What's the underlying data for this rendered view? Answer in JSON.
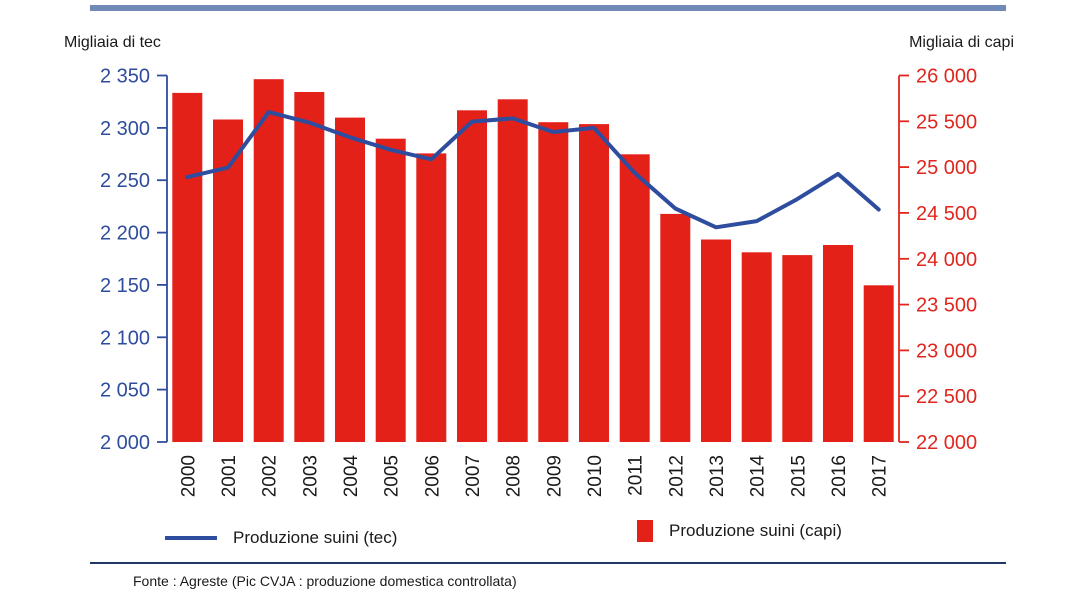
{
  "window": {
    "top_bar_color": "#7189b7",
    "separator_color": "#1f3864",
    "background": "#ffffff"
  },
  "titles": {
    "left_axis_title": "Migliaia di tec",
    "right_axis_title": "Migliaia di capi"
  },
  "chart_data": {
    "type": "bar",
    "subtype": "dual-axis bar + line combo",
    "categories": [
      "2000",
      "2001",
      "2002",
      "2003",
      "2004",
      "2005",
      "2006",
      "2007",
      "2008",
      "2009",
      "2010",
      "2011",
      "2012",
      "2013",
      "2014",
      "2015",
      "2016",
      "2017"
    ],
    "series": [
      {
        "name": "Produzione suini (tec)",
        "type": "line",
        "axis": "left",
        "color": "#2e4d9e",
        "values": [
          2253,
          2262,
          2315,
          2305,
          2291,
          2279,
          2270,
          2306,
          2309,
          2296,
          2300,
          2257,
          2223,
          2205,
          2211,
          2232,
          2256,
          2222
        ]
      },
      {
        "name": "Produzione suini (capi)",
        "type": "bar",
        "axis": "right",
        "color": "#e32119",
        "values": [
          25810,
          25520,
          25960,
          25820,
          25540,
          25310,
          25150,
          25620,
          25740,
          25490,
          25470,
          25140,
          24490,
          24210,
          24070,
          24040,
          24150,
          23710
        ]
      }
    ],
    "left_axis": {
      "title": "Migliaia di tec",
      "min": 2000,
      "max": 2350,
      "step": 50,
      "color": "#2e4d9e",
      "ticks": [
        "2 000",
        "2 050",
        "2 100",
        "2 150",
        "2 200",
        "2 250",
        "2 300",
        "2 350"
      ]
    },
    "right_axis": {
      "title": "Migliaia di capi",
      "min": 22000,
      "max": 26000,
      "step": 500,
      "color": "#e0261d",
      "ticks": [
        "22 000",
        "22 500",
        "23 000",
        "23 500",
        "24 000",
        "24 500",
        "25 000",
        "25 500",
        "26 000"
      ]
    },
    "x_label_rotation": -90,
    "grid": false,
    "legend_position": "bottom"
  },
  "legend": {
    "items": [
      {
        "label": "Produzione suini (tec)",
        "marker": "line",
        "color": "#2e4d9e"
      },
      {
        "label": "Produzione suini (capi)",
        "marker": "square",
        "color": "#e32119"
      }
    ]
  },
  "footer": {
    "source_text": "Fonte : Agreste (Pic CVJA : produzione domestica controllata)"
  }
}
